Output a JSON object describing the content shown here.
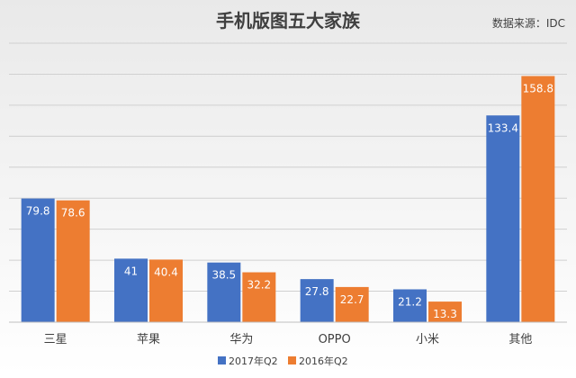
{
  "chart_data": {
    "type": "bar",
    "title": "手机版图五大家族",
    "source": "数据来源：IDC",
    "categories": [
      "三星",
      "苹果",
      "华为",
      "OPPO",
      "小米",
      "其他"
    ],
    "series": [
      {
        "name": "2017年Q2",
        "color": "#4472C4",
        "values": [
          79.8,
          41,
          38.5,
          27.8,
          21.2,
          133.4
        ]
      },
      {
        "name": "2016年Q2",
        "color": "#ED7D31",
        "values": [
          78.6,
          40.4,
          32.2,
          22.7,
          13.3,
          158.8
        ]
      }
    ],
    "labels": [
      [
        "79.8",
        "41",
        "38.5",
        "27.8",
        "21.2",
        "133.4"
      ],
      [
        "78.6",
        "40.4",
        "32.2",
        "22.7",
        "13.3",
        "158.8"
      ]
    ],
    "ylim": [
      0,
      180
    ],
    "grid": true,
    "legend": "bottom",
    "colors": {
      "background_top": "#ececec",
      "background_bottom": "#ffffff",
      "grid": "#d0d0d0",
      "axis": "#bfbfbf",
      "text": "#404040"
    }
  }
}
